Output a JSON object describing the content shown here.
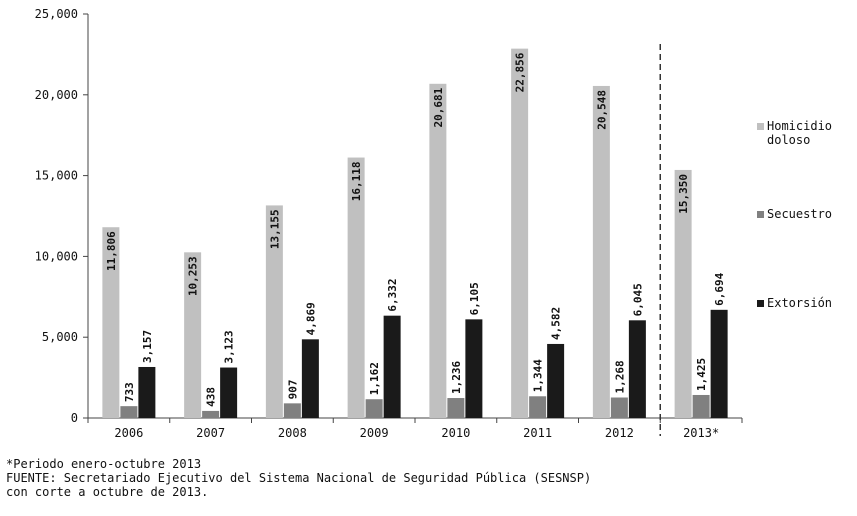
{
  "chart_data": {
    "type": "bar",
    "title": "",
    "xlabel": "",
    "ylabel": "",
    "categories": [
      "2006",
      "2007",
      "2008",
      "2009",
      "2010",
      "2011",
      "2012",
      "2013*"
    ],
    "value_labels": {
      "Homicidio doloso": [
        "11,806",
        "10,253",
        "13,155",
        "16,118",
        "20,681",
        "22,856",
        "20,548",
        "15,350"
      ],
      "Secuestro": [
        "733",
        "438",
        "907",
        "1,162",
        "1,236",
        "1,344",
        "1,268",
        "1,425"
      ],
      "Extorsión": [
        "3,157",
        "3,123",
        "4,869",
        "6,332",
        "6,105",
        "4,582",
        "6,045",
        "6,694"
      ]
    },
    "series": [
      {
        "name": "Homicidio doloso",
        "values": [
          11806,
          10253,
          13155,
          16118,
          20681,
          22856,
          20548,
          15350
        ],
        "color": "#c0c0c0"
      },
      {
        "name": "Secuestro",
        "values": [
          733,
          438,
          907,
          1162,
          1236,
          1344,
          1268,
          1425
        ],
        "color": "#808080"
      },
      {
        "name": "Extorsión",
        "values": [
          3157,
          3123,
          4869,
          6332,
          6105,
          4582,
          6045,
          6694
        ],
        "color": "#1a1a1a"
      }
    ],
    "ylim": [
      0,
      25000
    ],
    "yticks": [
      0,
      5000,
      10000,
      15000,
      20000,
      25000
    ],
    "ytick_labels": [
      "0",
      "5,000",
      "10,000",
      "15,000",
      "20,000",
      "25,000"
    ],
    "grid": false,
    "legend_position": "right",
    "legend": [
      {
        "key": "homicidio",
        "lines": [
          "Homicidio",
          "doloso"
        ],
        "color": "#c0c0c0"
      },
      {
        "key": "secuestro",
        "lines": [
          "Secuestro"
        ],
        "color": "#808080"
      },
      {
        "key": "extorsion",
        "lines": [
          "Extorsión"
        ],
        "color": "#1a1a1a"
      }
    ],
    "separator_before_category": "2013*"
  },
  "footnotes": {
    "line1": "*Periodo enero-octubre 2013",
    "line2": "FUENTE: Secretariado Ejecutivo del Sistema Nacional de Seguridad Pública (SESNSP)",
    "line3": "con corte a octubre de 2013."
  }
}
